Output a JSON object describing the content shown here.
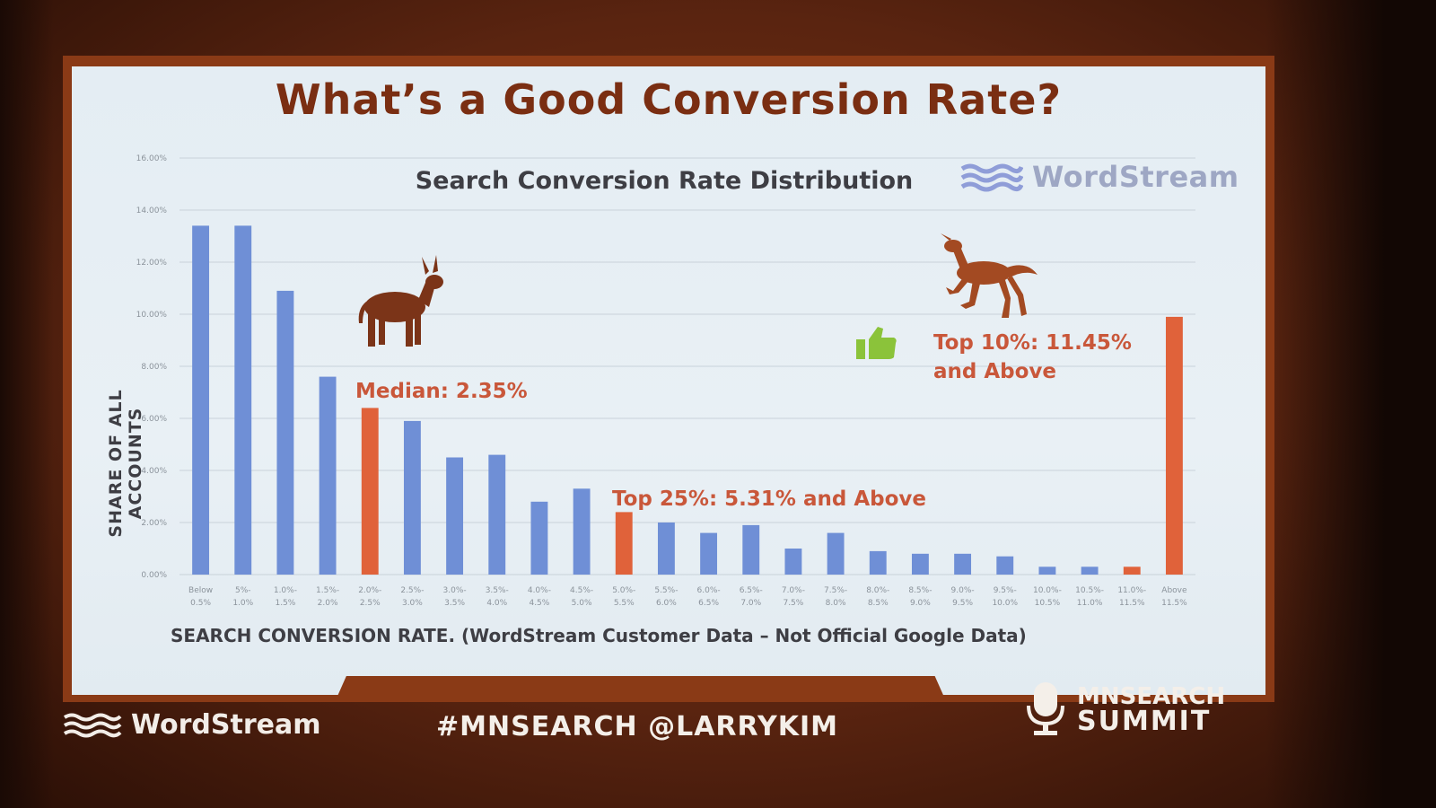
{
  "slide": {
    "title": "What’s a Good Conversion Rate?",
    "brand_text": "WordStream",
    "footer_brand": "WordStream",
    "hashtag": "#MNSEARCH @LARRYKIM",
    "summit_line1": "MNSEARCH",
    "summit_line2": "SUMMIT"
  },
  "annotations": {
    "median": "Median: 2.35%",
    "top25": "Top 25%: 5.31% and Above",
    "top10_line1": "Top 10%: 11.45%",
    "top10_line2": "and Above"
  },
  "colors": {
    "bar_blue": "#6f8fd6",
    "bar_highlight": "#e0623a",
    "title": "#7a2e12",
    "annotation": "#c9573a"
  },
  "chart_data": {
    "type": "bar",
    "title": "Search Conversion Rate Distribution",
    "ylabel": "SHARE OF ALL ACCOUNTS",
    "xlabel": "SEARCH CONVERSION RATE.  (WordStream Customer Data – Not Official Google Data)",
    "ylim": [
      0,
      16
    ],
    "yticks": [
      "0.00%",
      "2.00%",
      "4.00%",
      "6.00%",
      "8.00%",
      "10.00%",
      "12.00%",
      "14.00%",
      "16.00%"
    ],
    "grid": true,
    "categories": [
      [
        "Below",
        "0.5%"
      ],
      [
        "5%-",
        "1.0%"
      ],
      [
        "1.0%-",
        "1.5%"
      ],
      [
        "1.5%-",
        "2.0%"
      ],
      [
        "2.0%-",
        "2.5%"
      ],
      [
        "2.5%-",
        "3.0%"
      ],
      [
        "3.0%-",
        "3.5%"
      ],
      [
        "3.5%-",
        "4.0%"
      ],
      [
        "4.0%-",
        "4.5%"
      ],
      [
        "4.5%-",
        "5.0%"
      ],
      [
        "5.0%-",
        "5.5%"
      ],
      [
        "5.5%-",
        "6.0%"
      ],
      [
        "6.0%-",
        "6.5%"
      ],
      [
        "6.5%-",
        "7.0%"
      ],
      [
        "7.0%-",
        "7.5%"
      ],
      [
        "7.5%-",
        "8.0%"
      ],
      [
        "8.0%-",
        "8.5%"
      ],
      [
        "8.5%-",
        "9.0%"
      ],
      [
        "9.0%-",
        "9.5%"
      ],
      [
        "9.5%-",
        "10.0%"
      ],
      [
        "10.0%-",
        "10.5%"
      ],
      [
        "10.5%-",
        "11.0%"
      ],
      [
        "11.0%-",
        "11.5%"
      ],
      [
        "Above",
        "11.5%"
      ]
    ],
    "values": [
      13.4,
      13.4,
      10.9,
      7.6,
      6.4,
      5.9,
      4.5,
      4.6,
      2.8,
      3.3,
      2.4,
      2.0,
      1.6,
      1.9,
      1.0,
      1.6,
      0.9,
      0.8,
      0.8,
      0.7,
      0.3,
      0.3,
      0.3,
      9.9
    ],
    "highlighted": [
      4,
      10,
      22,
      23
    ]
  }
}
